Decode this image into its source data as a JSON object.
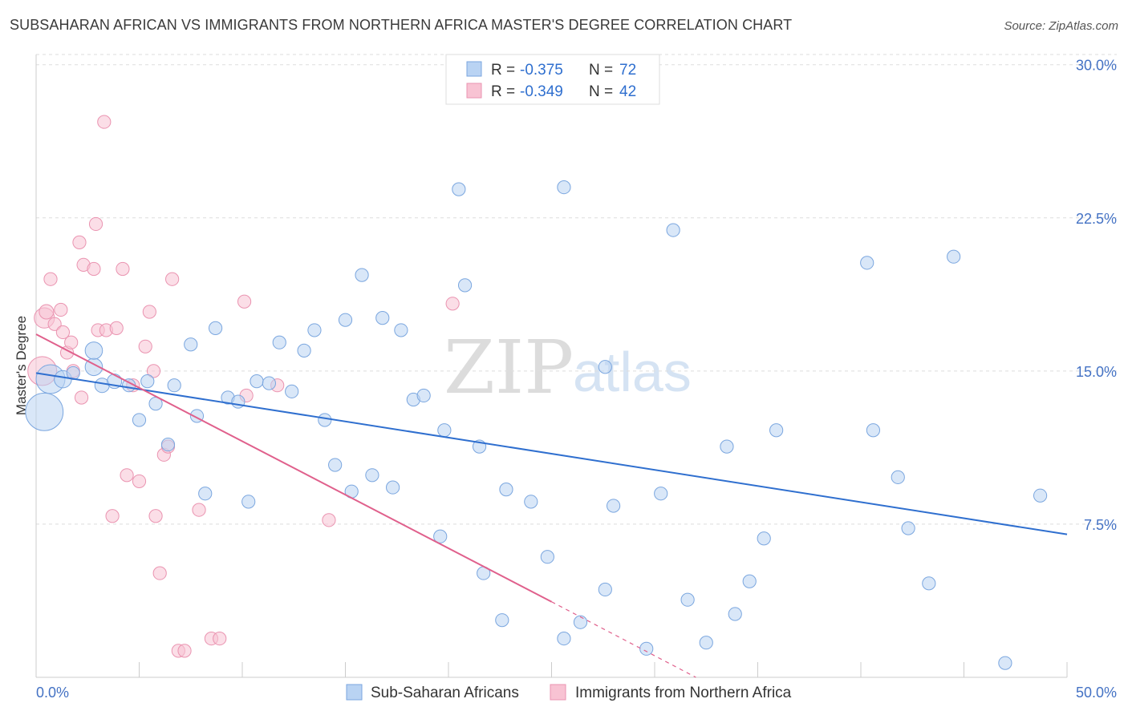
{
  "header": {
    "title": "SUBSAHARAN AFRICAN VS IMMIGRANTS FROM NORTHERN AFRICA MASTER'S DEGREE CORRELATION CHART",
    "source": "Source: ZipAtlas.com"
  },
  "watermark": {
    "zip": "ZIP",
    "atlas": "atlas"
  },
  "colors": {
    "blue_fill": "#b9d3f3",
    "blue_stroke": "#7aa6df",
    "blue_line": "#2f6fcf",
    "pink_fill": "#f8c3d3",
    "pink_stroke": "#ea93b0",
    "pink_line": "#e0608c",
    "grid": "#dddddd",
    "axis_tick_text": "#4472c4"
  },
  "legend": {
    "rows": [
      {
        "r_label": "R = ",
        "r_value": "-0.375",
        "n_label": "N = ",
        "n_value": "72"
      },
      {
        "r_label": "R = ",
        "r_value": "-0.349",
        "n_label": "N = ",
        "n_value": "42"
      }
    ]
  },
  "bottom_legend": {
    "series1": "Sub-Saharan Africans",
    "series2": "Immigrants from Northern Africa"
  },
  "chart_data": {
    "type": "scatter",
    "title": "SUBSAHARAN AFRICAN VS IMMIGRANTS FROM NORTHERN AFRICA MASTER'S DEGREE CORRELATION CHART",
    "xlabel": "",
    "ylabel": "Master's Degree",
    "xlim": [
      0,
      50
    ],
    "ylim": [
      0,
      30.5
    ],
    "x_tick_labels": [
      "0.0%",
      "50.0%"
    ],
    "y_ticks": [
      7.5,
      15.0,
      22.5,
      30.0
    ],
    "y_tick_labels": [
      "7.5%",
      "15.0%",
      "22.5%",
      "30.0%"
    ],
    "series": [
      {
        "name": "Sub-Saharan Africans",
        "R": -0.375,
        "N": 72,
        "trend": {
          "x": [
            0,
            50
          ],
          "y": [
            14.9,
            7.0
          ]
        },
        "points": [
          [
            0.4,
            13.0,
            2.6
          ],
          [
            0.7,
            14.6,
            2.0
          ],
          [
            1.3,
            14.6,
            1.2
          ],
          [
            1.8,
            14.9,
            0.9
          ],
          [
            2.8,
            15.2,
            1.2
          ],
          [
            2.8,
            16.0,
            1.2
          ],
          [
            3.2,
            14.3,
            1.0
          ],
          [
            3.8,
            14.5,
            1.0
          ],
          [
            4.5,
            14.3,
            0.9
          ],
          [
            5.0,
            12.6,
            0.9
          ],
          [
            5.4,
            14.5,
            0.9
          ],
          [
            5.8,
            13.4,
            0.9
          ],
          [
            6.4,
            11.4,
            0.9
          ],
          [
            6.7,
            14.3,
            0.9
          ],
          [
            7.5,
            16.3,
            0.9
          ],
          [
            7.8,
            12.8,
            0.9
          ],
          [
            8.2,
            9.0,
            0.9
          ],
          [
            8.7,
            17.1,
            0.9
          ],
          [
            9.3,
            13.7,
            0.9
          ],
          [
            9.8,
            13.5,
            0.9
          ],
          [
            10.3,
            8.6,
            0.9
          ],
          [
            10.7,
            14.5,
            0.9
          ],
          [
            11.3,
            14.4,
            0.9
          ],
          [
            11.8,
            16.4,
            0.9
          ],
          [
            12.4,
            14.0,
            0.9
          ],
          [
            13.0,
            16.0,
            0.9
          ],
          [
            13.5,
            17.0,
            0.9
          ],
          [
            14.0,
            12.6,
            0.9
          ],
          [
            14.5,
            10.4,
            0.9
          ],
          [
            15.0,
            17.5,
            0.9
          ],
          [
            15.3,
            9.1,
            0.9
          ],
          [
            15.8,
            19.7,
            0.9
          ],
          [
            16.3,
            9.9,
            0.9
          ],
          [
            16.8,
            17.6,
            0.9
          ],
          [
            17.3,
            9.3,
            0.9
          ],
          [
            17.7,
            17.0,
            0.9
          ],
          [
            18.3,
            13.6,
            0.9
          ],
          [
            18.8,
            13.8,
            0.9
          ],
          [
            19.6,
            6.9,
            0.9
          ],
          [
            19.8,
            12.1,
            0.9
          ],
          [
            20.5,
            23.9,
            0.9
          ],
          [
            20.8,
            19.2,
            0.9
          ],
          [
            21.5,
            11.3,
            0.9
          ],
          [
            21.7,
            5.1,
            0.9
          ],
          [
            22.6,
            2.8,
            0.9
          ],
          [
            22.8,
            9.2,
            0.9
          ],
          [
            24.0,
            8.6,
            0.9
          ],
          [
            24.8,
            5.9,
            0.9
          ],
          [
            25.6,
            1.9,
            0.9
          ],
          [
            25.6,
            24.0,
            0.9
          ],
          [
            26.4,
            2.7,
            0.9
          ],
          [
            27.6,
            4.3,
            0.9
          ],
          [
            28.0,
            8.4,
            0.9
          ],
          [
            29.6,
            1.4,
            0.9
          ],
          [
            30.3,
            9.0,
            0.9
          ],
          [
            30.9,
            21.9,
            0.9
          ],
          [
            31.6,
            3.8,
            0.9
          ],
          [
            32.5,
            1.7,
            0.9
          ],
          [
            33.5,
            11.3,
            0.9
          ],
          [
            33.9,
            3.1,
            0.9
          ],
          [
            34.6,
            4.7,
            0.9
          ],
          [
            35.3,
            6.8,
            0.9
          ],
          [
            35.9,
            12.1,
            0.9
          ],
          [
            40.3,
            20.3,
            0.9
          ],
          [
            40.6,
            12.1,
            0.9
          ],
          [
            41.8,
            9.8,
            0.9
          ],
          [
            42.3,
            7.3,
            0.9
          ],
          [
            43.3,
            4.6,
            0.9
          ],
          [
            44.5,
            20.6,
            0.9
          ],
          [
            47.0,
            0.7,
            0.9
          ],
          [
            48.7,
            8.9,
            0.9
          ],
          [
            27.6,
            15.2,
            0.9
          ]
        ]
      },
      {
        "name": "Immigrants from Northern Africa",
        "R": -0.349,
        "N": 42,
        "trend": {
          "x": [
            0,
            25.0
          ],
          "y": [
            16.8,
            3.7
          ],
          "dashed_x": [
            25.0,
            32.0
          ],
          "dashed_y": [
            3.7,
            0.0
          ]
        },
        "points": [
          [
            0.3,
            15.0,
            2.0
          ],
          [
            0.4,
            17.6,
            1.4
          ],
          [
            0.5,
            17.9,
            1.0
          ],
          [
            0.7,
            19.5,
            0.9
          ],
          [
            0.9,
            17.3,
            0.9
          ],
          [
            1.2,
            18.0,
            0.9
          ],
          [
            1.3,
            16.9,
            0.9
          ],
          [
            1.5,
            15.9,
            0.9
          ],
          [
            1.7,
            16.4,
            0.9
          ],
          [
            1.8,
            15.0,
            0.9
          ],
          [
            2.1,
            21.3,
            0.9
          ],
          [
            2.2,
            13.7,
            0.9
          ],
          [
            2.3,
            20.2,
            0.9
          ],
          [
            2.8,
            20.0,
            0.9
          ],
          [
            2.9,
            22.2,
            0.9
          ],
          [
            3.0,
            17.0,
            0.9
          ],
          [
            3.3,
            27.2,
            0.9
          ],
          [
            3.4,
            17.0,
            0.9
          ],
          [
            3.7,
            7.9,
            0.9
          ],
          [
            3.9,
            17.1,
            0.9
          ],
          [
            4.2,
            20.0,
            0.9
          ],
          [
            4.4,
            9.9,
            0.9
          ],
          [
            4.7,
            14.3,
            0.9
          ],
          [
            5.0,
            9.6,
            0.9
          ],
          [
            5.3,
            16.2,
            0.9
          ],
          [
            5.5,
            17.9,
            0.9
          ],
          [
            5.7,
            15.0,
            0.9
          ],
          [
            5.8,
            7.9,
            0.9
          ],
          [
            6.0,
            5.1,
            0.9
          ],
          [
            6.2,
            10.9,
            0.9
          ],
          [
            6.4,
            11.3,
            0.9
          ],
          [
            6.6,
            19.5,
            0.9
          ],
          [
            6.9,
            1.3,
            0.9
          ],
          [
            7.2,
            1.3,
            0.9
          ],
          [
            7.9,
            8.2,
            0.9
          ],
          [
            8.5,
            1.9,
            0.9
          ],
          [
            8.9,
            1.9,
            0.9
          ],
          [
            10.1,
            18.4,
            0.9
          ],
          [
            10.2,
            13.8,
            0.9
          ],
          [
            11.7,
            14.3,
            0.9
          ],
          [
            14.2,
            7.7,
            0.9
          ],
          [
            20.2,
            18.3,
            0.9
          ]
        ]
      }
    ]
  }
}
